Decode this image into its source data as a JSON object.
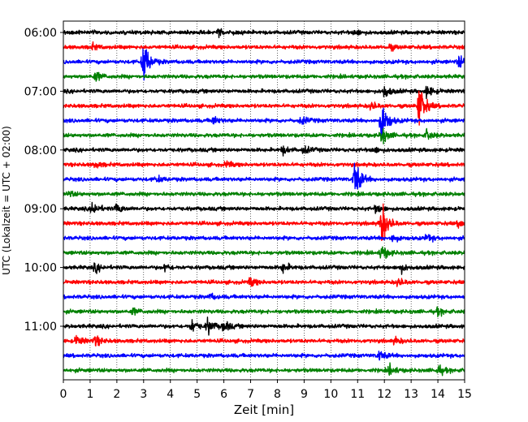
{
  "chart_data": {
    "type": "line",
    "subtype": "helicorder / seismogram drum plot",
    "xlabel": "Zeit  [min]",
    "ylabel": "UTC (Lokalzeit = UTC + 02:00)",
    "xlim": [
      0,
      15
    ],
    "x_ticks": [
      "0",
      "1",
      "2",
      "3",
      "4",
      "5",
      "6",
      "7",
      "8",
      "9",
      "10",
      "11",
      "12",
      "13",
      "14",
      "15"
    ],
    "y_tick_labels": [
      "06:00",
      "07:00",
      "08:00",
      "09:00",
      "10:00",
      "11:00"
    ],
    "grid": "vertical dotted gridlines at each minute",
    "trace_interval_minutes": 15,
    "trace_colors": [
      "#000000",
      "#ff0000",
      "#0000ff",
      "#008000"
    ],
    "traces": [
      {
        "start": "06:00",
        "color": "#000000",
        "events": [
          {
            "t": 5.8,
            "amp": 0.7
          },
          {
            "t": 10.9,
            "amp": 0.6
          }
        ]
      },
      {
        "start": "06:15",
        "color": "#ff0000",
        "events": [
          {
            "t": 1.1,
            "amp": 0.5
          },
          {
            "t": 12.2,
            "amp": 0.5
          }
        ]
      },
      {
        "start": "06:30",
        "color": "#0000ff",
        "events": [
          {
            "t": 3.0,
            "amp": 4.5
          },
          {
            "t": 14.8,
            "amp": 1.2
          }
        ]
      },
      {
        "start": "06:45",
        "color": "#008000",
        "events": [
          {
            "t": 1.2,
            "amp": 1.0
          }
        ]
      },
      {
        "start": "07:00",
        "color": "#000000",
        "events": [
          {
            "t": 12.0,
            "amp": 1.3
          },
          {
            "t": 13.6,
            "amp": 1.2
          }
        ]
      },
      {
        "start": "07:15",
        "color": "#ff0000",
        "events": [
          {
            "t": 13.3,
            "amp": 4.5
          },
          {
            "t": 11.5,
            "amp": 0.8
          }
        ]
      },
      {
        "start": "07:30",
        "color": "#0000ff",
        "events": [
          {
            "t": 11.9,
            "amp": 4.5
          },
          {
            "t": 5.6,
            "amp": 0.8
          },
          {
            "t": 8.9,
            "amp": 0.8
          }
        ]
      },
      {
        "start": "07:45",
        "color": "#008000",
        "events": [
          {
            "t": 11.9,
            "amp": 1.8
          },
          {
            "t": 13.6,
            "amp": 1.0
          }
        ]
      },
      {
        "start": "08:00",
        "color": "#000000",
        "events": [
          {
            "t": 8.2,
            "amp": 0.8
          },
          {
            "t": 9.0,
            "amp": 0.7
          },
          {
            "t": 11.6,
            "amp": 0.6
          }
        ]
      },
      {
        "start": "08:15",
        "color": "#ff0000",
        "events": [
          {
            "t": 1.2,
            "amp": 0.6
          },
          {
            "t": 6.1,
            "amp": 0.6
          }
        ]
      },
      {
        "start": "08:30",
        "color": "#0000ff",
        "events": [
          {
            "t": 10.9,
            "amp": 4.0
          },
          {
            "t": 3.5,
            "amp": 0.6
          }
        ]
      },
      {
        "start": "08:45",
        "color": "#008000",
        "events": [
          {
            "t": 0.2,
            "amp": 0.5
          }
        ]
      },
      {
        "start": "09:00",
        "color": "#000000",
        "events": [
          {
            "t": 1.1,
            "amp": 1.4
          },
          {
            "t": 2.0,
            "amp": 0.9
          },
          {
            "t": 11.7,
            "amp": 0.8
          }
        ]
      },
      {
        "start": "09:15",
        "color": "#ff0000",
        "events": [
          {
            "t": 11.9,
            "amp": 4.6
          },
          {
            "t": 14.8,
            "amp": 0.9
          }
        ]
      },
      {
        "start": "09:30",
        "color": "#0000ff",
        "events": [
          {
            "t": 12.3,
            "amp": 0.8
          },
          {
            "t": 13.6,
            "amp": 0.7
          }
        ]
      },
      {
        "start": "09:45",
        "color": "#008000",
        "events": [
          {
            "t": 11.9,
            "amp": 1.6
          }
        ]
      },
      {
        "start": "10:00",
        "color": "#000000",
        "events": [
          {
            "t": 1.2,
            "amp": 0.8
          },
          {
            "t": 3.8,
            "amp": 0.7
          },
          {
            "t": 8.2,
            "amp": 1.0
          },
          {
            "t": 12.6,
            "amp": 0.9
          }
        ]
      },
      {
        "start": "10:15",
        "color": "#ff0000",
        "events": [
          {
            "t": 7.0,
            "amp": 0.9
          },
          {
            "t": 12.5,
            "amp": 0.8
          }
        ]
      },
      {
        "start": "10:30",
        "color": "#0000ff",
        "events": [
          {
            "t": 5.5,
            "amp": 0.5
          }
        ]
      },
      {
        "start": "10:45",
        "color": "#008000",
        "events": [
          {
            "t": 2.6,
            "amp": 0.6
          },
          {
            "t": 14.0,
            "amp": 0.6
          }
        ]
      },
      {
        "start": "11:00",
        "color": "#000000",
        "events": [
          {
            "t": 4.8,
            "amp": 1.3
          },
          {
            "t": 5.4,
            "amp": 1.5
          },
          {
            "t": 6.0,
            "amp": 1.1
          }
        ]
      },
      {
        "start": "11:15",
        "color": "#ff0000",
        "events": [
          {
            "t": 0.5,
            "amp": 1.0
          },
          {
            "t": 1.2,
            "amp": 1.0
          },
          {
            "t": 12.4,
            "amp": 0.6
          }
        ]
      },
      {
        "start": "11:30",
        "color": "#0000ff",
        "events": [
          {
            "t": 11.8,
            "amp": 1.0
          }
        ]
      },
      {
        "start": "11:45",
        "color": "#008000",
        "events": [
          {
            "t": 12.2,
            "amp": 1.0
          },
          {
            "t": 14.0,
            "amp": 1.0
          }
        ]
      }
    ]
  }
}
